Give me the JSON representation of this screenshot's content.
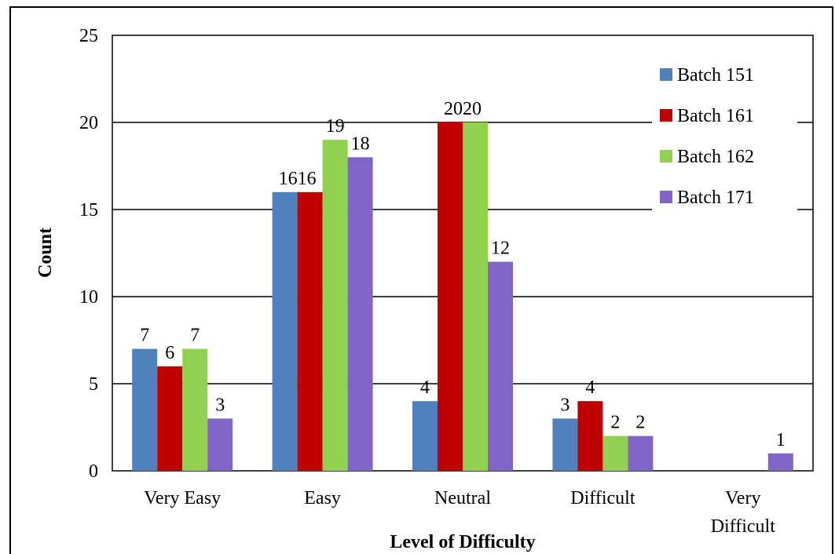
{
  "chart_data": {
    "type": "bar",
    "title": "",
    "xlabel": "Level of Difficulty",
    "ylabel": "Count",
    "ylim": [
      0,
      25
    ],
    "yticks": [
      0,
      5,
      10,
      15,
      20,
      25
    ],
    "grid": true,
    "legend_position": "top-right",
    "categories": [
      "Very Easy",
      "Easy",
      "Neutral",
      "Difficult",
      "Very\nDifficult"
    ],
    "series": [
      {
        "name": "Batch 151",
        "color": "#4F81BD",
        "values": [
          7,
          16,
          4,
          3,
          0
        ]
      },
      {
        "name": "Batch 161",
        "color": "#C00000",
        "values": [
          6,
          16,
          20,
          4,
          0
        ]
      },
      {
        "name": "Batch 162",
        "color": "#92D050",
        "values": [
          7,
          19,
          20,
          2,
          0
        ]
      },
      {
        "name": "Batch 171",
        "color": "#8064C8",
        "values": [
          3,
          18,
          12,
          2,
          1
        ]
      }
    ],
    "data_labels": [
      [
        "7",
        "1616",
        "4",
        "3",
        ""
      ],
      [
        "6",
        "",
        "2020",
        "4",
        ""
      ],
      [
        "7",
        "19",
        "",
        "2",
        ""
      ],
      [
        "3",
        "18",
        "12",
        "2",
        "1"
      ]
    ]
  }
}
